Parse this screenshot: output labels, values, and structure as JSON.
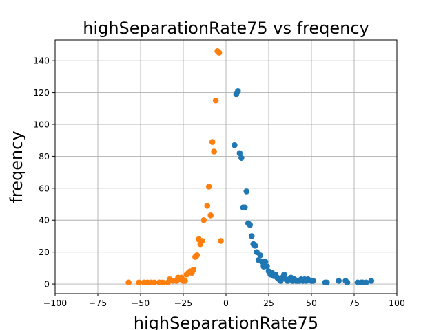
{
  "chart_data": {
    "type": "scatter",
    "title": "highSeparationRate75 vs freqency",
    "xlabel": "highSeparationRate75",
    "ylabel": "freqency",
    "xlim": [
      -100,
      100
    ],
    "ylim": [
      -6,
      153
    ],
    "xticks": [
      -100,
      -75,
      -50,
      -25,
      0,
      25,
      50,
      75,
      100
    ],
    "yticks": [
      0,
      20,
      40,
      60,
      80,
      100,
      120,
      140
    ],
    "grid": true,
    "series": [
      {
        "color": "#1f77b4",
        "points": [
          [
            5,
            87
          ],
          [
            6,
            119
          ],
          [
            7,
            121
          ],
          [
            8,
            82
          ],
          [
            9,
            79
          ],
          [
            10,
            48
          ],
          [
            11,
            48
          ],
          [
            12,
            58
          ],
          [
            13,
            38
          ],
          [
            14,
            37
          ],
          [
            15,
            30
          ],
          [
            16,
            25
          ],
          [
            17,
            24
          ],
          [
            18,
            20
          ],
          [
            19,
            15
          ],
          [
            20,
            18
          ],
          [
            21,
            14
          ],
          [
            22,
            11
          ],
          [
            23,
            14
          ],
          [
            24,
            11
          ],
          [
            25,
            8
          ],
          [
            26,
            6
          ],
          [
            27,
            7
          ],
          [
            28,
            5
          ],
          [
            29,
            6
          ],
          [
            30,
            4
          ],
          [
            31,
            3
          ],
          [
            32,
            2
          ],
          [
            33,
            4
          ],
          [
            34,
            6
          ],
          [
            35,
            3
          ],
          [
            36,
            2
          ],
          [
            37,
            3
          ],
          [
            38,
            4
          ],
          [
            39,
            2
          ],
          [
            40,
            3
          ],
          [
            41,
            2
          ],
          [
            42,
            2
          ],
          [
            43,
            2
          ],
          [
            44,
            3
          ],
          [
            45,
            2
          ],
          [
            46,
            3
          ],
          [
            47,
            2
          ],
          [
            48,
            3
          ],
          [
            50,
            2
          ],
          [
            51,
            2
          ],
          [
            58,
            1
          ],
          [
            59,
            1
          ],
          [
            66,
            2
          ],
          [
            70,
            2
          ],
          [
            71,
            1
          ],
          [
            77,
            1
          ],
          [
            79,
            1
          ],
          [
            80,
            1
          ],
          [
            82,
            1
          ],
          [
            85,
            2
          ]
        ]
      },
      {
        "color": "#ff7f0e",
        "points": [
          [
            -57,
            1
          ],
          [
            -51,
            1
          ],
          [
            -48,
            1
          ],
          [
            -46,
            1
          ],
          [
            -44,
            1
          ],
          [
            -42,
            1
          ],
          [
            -39,
            1
          ],
          [
            -37,
            1
          ],
          [
            -34,
            1
          ],
          [
            -33,
            3
          ],
          [
            -31,
            2
          ],
          [
            -29,
            2
          ],
          [
            -28,
            4
          ],
          [
            -27,
            3
          ],
          [
            -26,
            4
          ],
          [
            -25,
            2
          ],
          [
            -24,
            2
          ],
          [
            -23,
            6
          ],
          [
            -22,
            7
          ],
          [
            -21,
            8
          ],
          [
            -20,
            7
          ],
          [
            -19,
            9
          ],
          [
            -18,
            17
          ],
          [
            -17,
            18
          ],
          [
            -16,
            28
          ],
          [
            -15,
            25
          ],
          [
            -14,
            27
          ],
          [
            -13,
            40
          ],
          [
            -11,
            49
          ],
          [
            -10,
            61
          ],
          [
            -9,
            43
          ],
          [
            -8,
            89
          ],
          [
            -7,
            83
          ],
          [
            -6,
            115
          ],
          [
            -5,
            146
          ],
          [
            -4,
            145
          ],
          [
            -3,
            27
          ]
        ]
      }
    ]
  }
}
